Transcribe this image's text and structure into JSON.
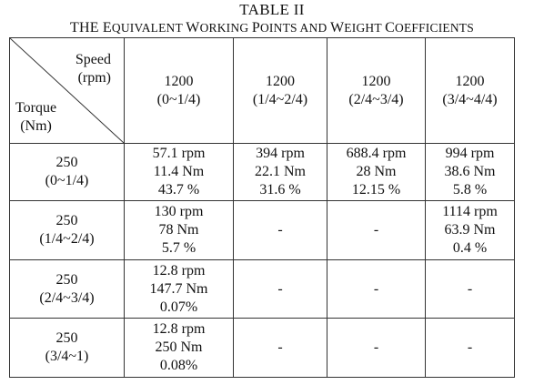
{
  "table": {
    "title": "TABLE II",
    "subtitle_parts": [
      {
        "t": "THE E",
        "big": true
      },
      {
        "t": "QUIVALENT ",
        "big": false
      },
      {
        "t": "W",
        "big": true
      },
      {
        "t": "ORKING ",
        "big": false
      },
      {
        "t": "P",
        "big": true
      },
      {
        "t": "OINTS AND ",
        "big": false
      },
      {
        "t": "W",
        "big": true
      },
      {
        "t": "EIGHT ",
        "big": false
      },
      {
        "t": "C",
        "big": true
      },
      {
        "t": "OEFFICIENTS",
        "big": false
      }
    ],
    "corner": {
      "speed": "Speed",
      "speed_unit": "(rpm)",
      "torque": "Torque",
      "torque_unit": "(Nm)"
    },
    "columns": [
      {
        "value": "1200",
        "range": "(0~1/4)"
      },
      {
        "value": "1200",
        "range": "(1/4~2/4)"
      },
      {
        "value": "1200",
        "range": "(2/4~3/4)"
      },
      {
        "value": "1200",
        "range": "(3/4~4/4)"
      }
    ],
    "rows": [
      {
        "value": "250",
        "range": "(0~1/4)",
        "cells": [
          [
            "57.1 rpm",
            "11.4 Nm",
            "43.7 %"
          ],
          [
            "394 rpm",
            "22.1 Nm",
            "31.6 %"
          ],
          [
            "688.4 rpm",
            "28 Nm",
            "12.15 %"
          ],
          [
            "994 rpm",
            "38.6 Nm",
            "5.8 %"
          ]
        ]
      },
      {
        "value": "250",
        "range": "(1/4~2/4)",
        "cells": [
          [
            "130 rpm",
            "78 Nm",
            "5.7 %"
          ],
          [
            "-"
          ],
          [
            "-"
          ],
          [
            "1114 rpm",
            "63.9 Nm",
            "0.4 %"
          ]
        ]
      },
      {
        "value": "250",
        "range": "(2/4~3/4)",
        "cells": [
          [
            "12.8 rpm",
            "147.7 Nm",
            "0.07%"
          ],
          [
            "-"
          ],
          [
            "-"
          ],
          [
            "-"
          ]
        ]
      },
      {
        "value": "250",
        "range": "(3/4~1)",
        "cells": [
          [
            "12.8 rpm",
            "250 Nm",
            "0.08%"
          ],
          [
            "-"
          ],
          [
            "-"
          ],
          [
            "-"
          ]
        ]
      }
    ]
  }
}
